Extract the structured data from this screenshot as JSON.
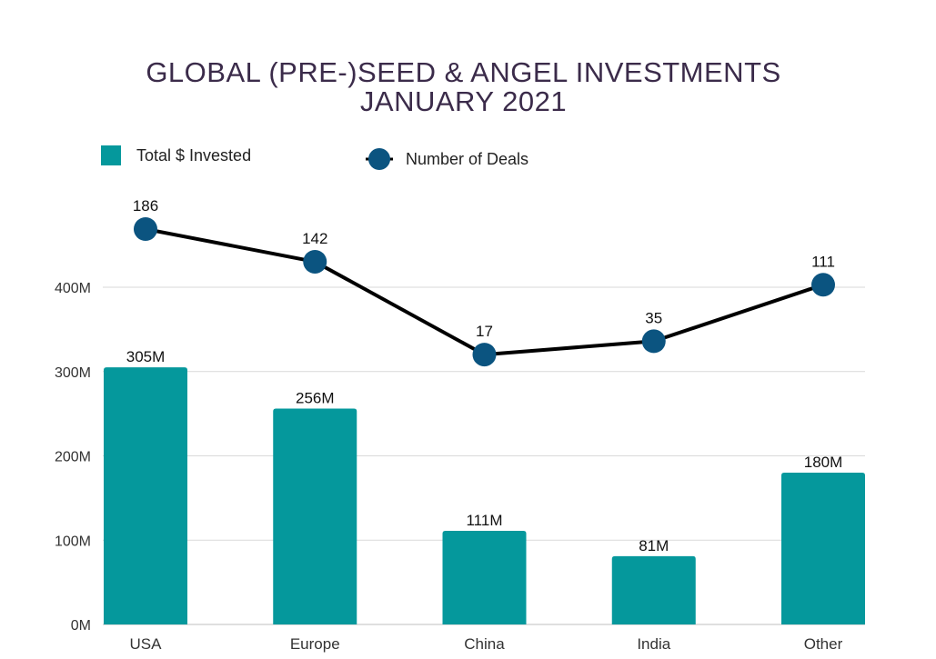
{
  "title_line1": "GLOBAL (PRE-)SEED & ANGEL INVESTMENTS",
  "title_line2": "JANUARY 2021",
  "colors": {
    "bar": "#05989c",
    "marker": "#0b5480",
    "line": "#000000",
    "title": "#3b2b4a",
    "grid": "#d9d9d9"
  },
  "chart_data": {
    "type": "bar",
    "categories": [
      "USA",
      "Europe",
      "China",
      "India",
      "Other"
    ],
    "series": [
      {
        "name": "Total $ Invested",
        "type": "bar",
        "values": [
          305,
          256,
          111,
          81,
          180
        ],
        "labels": [
          "305M",
          "256M",
          "111M",
          "81M",
          "180M"
        ]
      },
      {
        "name": "Number of Deals",
        "type": "line",
        "values": [
          186,
          142,
          17,
          35,
          111
        ],
        "labels": [
          "186",
          "142",
          "17",
          "35",
          "111"
        ]
      }
    ],
    "yticks": [
      "0M",
      "100M",
      "200M",
      "300M",
      "400M"
    ],
    "ylim": [
      0,
      400
    ],
    "legend": "top-left",
    "grid": true
  }
}
